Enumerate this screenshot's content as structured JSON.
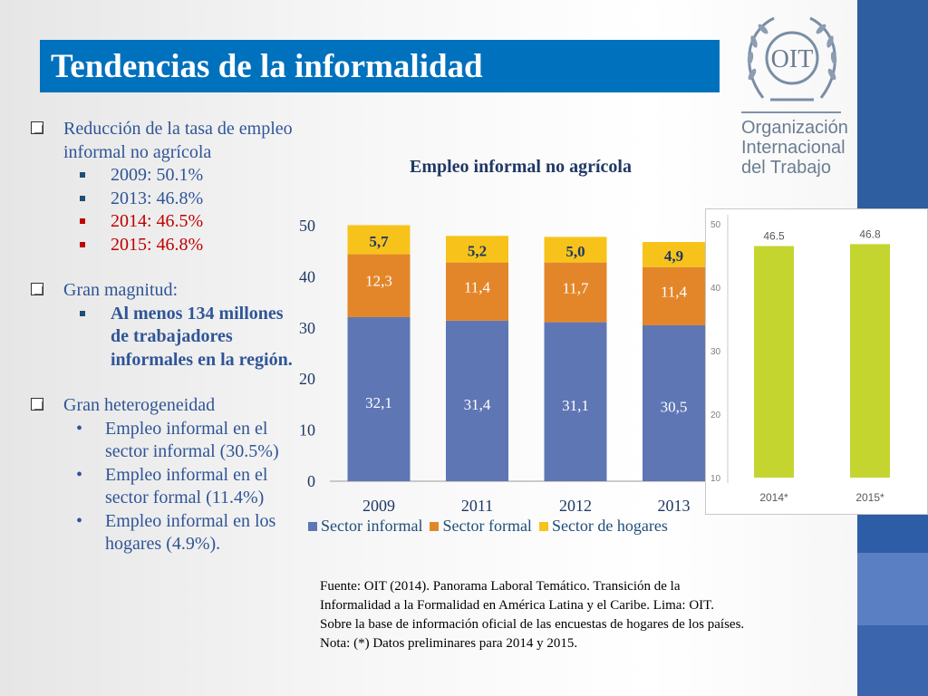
{
  "title": "Tendencias de la informalidad",
  "org": {
    "logo_text": "OIT",
    "name_lines": [
      "Organización",
      "Internacional",
      "del Trabajo"
    ]
  },
  "bullets": {
    "item1": "Reducción de la tasa de empleo informal no agrícola",
    "item1_sub": [
      "2009: 50.1%",
      "2013: 46.8%",
      "2014: 46.5%",
      "2015: 46.8%"
    ],
    "item2": "Gran magnitud:",
    "item2_sub": "Al menos 134 millones de trabajadores informales en la región.",
    "item3": "Gran heterogeneidad",
    "item3_sub": [
      "Empleo informal en el sector informal (30.5%)",
      "Empleo informal en el sector formal (11.4%)",
      "Empleo informal en los hogares (4.9%)."
    ]
  },
  "source": {
    "line1": "Fuente: OIT (2014). Panorama Laboral Temático. Transición de la",
    "line2": "Informalidad a la Formalidad en América Latina y el Caribe. Lima: OIT.",
    "line3": "Sobre la base de información oficial de las encuestas de hogares de los países.",
    "line4": "Nota: (*) Datos preliminares para 2014 y 2015."
  },
  "colors": {
    "title_bar": "#0071bd",
    "sector_informal": "#5f76b5",
    "sector_formal": "#e3862a",
    "sector_hogares": "#f7c31b",
    "inset_bar": "#c4d530"
  },
  "chart_data": [
    {
      "type": "bar",
      "stacked": true,
      "title": "Empleo informal no agrícola",
      "categories": [
        "2009",
        "2011",
        "2012",
        "2013"
      ],
      "series": [
        {
          "name": "Sector informal",
          "values": [
            32.1,
            31.4,
            31.1,
            30.5
          ],
          "labels": [
            "32,1",
            "31,4",
            "31,1",
            "30,5"
          ]
        },
        {
          "name": "Sector formal",
          "values": [
            12.3,
            11.4,
            11.7,
            11.4
          ],
          "labels": [
            "12,3",
            "11,4",
            "11,7",
            "11,4"
          ]
        },
        {
          "name": "Sector de hogares",
          "values": [
            5.7,
            5.2,
            5.0,
            4.9
          ],
          "labels": [
            "5,7",
            "5,2",
            "5,0",
            "4,9"
          ]
        }
      ],
      "ylim": [
        0,
        50
      ],
      "yticks": [
        "0",
        "10",
        "20",
        "30",
        "40",
        "50"
      ],
      "legend": "bottom"
    },
    {
      "type": "bar",
      "categories": [
        "2014*",
        "2015*"
      ],
      "values": [
        46.5,
        46.8
      ],
      "labels": [
        "46.5",
        "46.8"
      ],
      "ylim": [
        10,
        50
      ],
      "yticks": [
        "10",
        "20",
        "30",
        "40",
        "50"
      ]
    }
  ]
}
